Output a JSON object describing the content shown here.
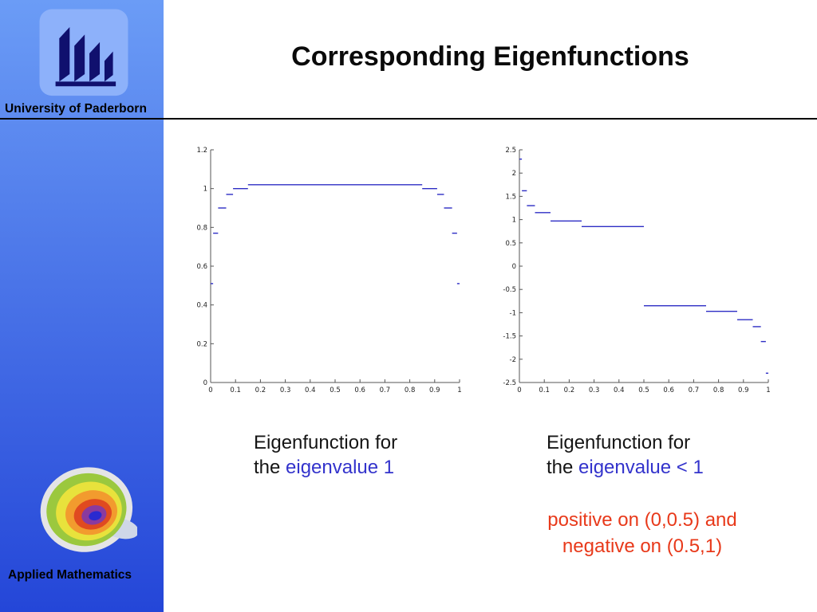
{
  "slide": {
    "title": "Corresponding Eigenfunctions"
  },
  "sidebar": {
    "university_label": "University of Paderborn",
    "department_label": "Applied Mathematics",
    "logo_icon": "university-logo-icon",
    "swirl_icon": "spiral-attractor-icon"
  },
  "captions": {
    "left": {
      "line1": "Eigenfunction for",
      "line2_prefix": "the ",
      "line2_highlight": "eigenvalue 1"
    },
    "right": {
      "line1": "Eigenfunction for",
      "line2_prefix": "the ",
      "line2_highlight": "eigenvalue < 1"
    },
    "note": {
      "line1": "positive on (0,0.5) and",
      "line2": "negative on (0.5,1)"
    }
  },
  "colors": {
    "highlight_blue": "#3333cc",
    "note_red": "#e8391a",
    "plot_line": "#2d2dc4",
    "axis_color": "#555555",
    "sidebar_top": "#6b9cf6",
    "sidebar_bottom": "#2446d8"
  },
  "chart_data": [
    {
      "type": "line",
      "style": "horizontal-step-segments",
      "title": "",
      "xlabel": "",
      "ylabel": "",
      "xlim": [
        0,
        1
      ],
      "ylim": [
        0,
        1.2
      ],
      "x_ticks": [
        0,
        0.1,
        0.2,
        0.3,
        0.4,
        0.5,
        0.6,
        0.7,
        0.8,
        0.9,
        1
      ],
      "x_tick_labels": [
        "0",
        "0.1",
        "0.2",
        "0.3",
        "0.4",
        "0.5",
        "0.6",
        "0.7",
        "0.8",
        "0.9",
        "1"
      ],
      "y_ticks": [
        0,
        0.2,
        0.4,
        0.6,
        0.8,
        1,
        1.2
      ],
      "y_tick_labels": [
        "0",
        "0.2",
        "0.4",
        "0.6",
        "0.8",
        "1",
        "1.2"
      ],
      "grid": false,
      "legend": false,
      "segments": [
        [
          0.0,
          0.01,
          0.51
        ],
        [
          0.01,
          0.03,
          0.77
        ],
        [
          0.03,
          0.0625,
          0.9
        ],
        [
          0.0625,
          0.09,
          0.97
        ],
        [
          0.09,
          0.15,
          1.0
        ],
        [
          0.15,
          0.85,
          1.02
        ],
        [
          0.85,
          0.91,
          1.0
        ],
        [
          0.91,
          0.9375,
          0.97
        ],
        [
          0.9375,
          0.97,
          0.9
        ],
        [
          0.97,
          0.99,
          0.77
        ],
        [
          0.99,
          1.0,
          0.51
        ]
      ]
    },
    {
      "type": "line",
      "style": "horizontal-step-segments",
      "title": "",
      "xlabel": "",
      "ylabel": "",
      "xlim": [
        0,
        1
      ],
      "ylim": [
        -2.5,
        2.5
      ],
      "x_ticks": [
        0,
        0.1,
        0.2,
        0.3,
        0.4,
        0.5,
        0.6,
        0.7,
        0.8,
        0.9,
        1
      ],
      "x_tick_labels": [
        "0",
        "0.1",
        "0.2",
        "0.3",
        "0.4",
        "0.5",
        "0.6",
        "0.7",
        "0.8",
        "0.9",
        "1"
      ],
      "y_ticks": [
        -2.5,
        -2,
        -1.5,
        -1,
        -0.5,
        0,
        0.5,
        1,
        1.5,
        2,
        2.5
      ],
      "y_tick_labels": [
        "-2.5",
        "-2",
        "-1.5",
        "-1",
        "-0.5",
        "0",
        "0.5",
        "1",
        "1.5",
        "2",
        "2.5"
      ],
      "grid": false,
      "legend": false,
      "segments": [
        [
          0.0,
          0.01,
          2.3
        ],
        [
          0.01,
          0.03,
          1.62
        ],
        [
          0.03,
          0.0625,
          1.3
        ],
        [
          0.0625,
          0.125,
          1.15
        ],
        [
          0.125,
          0.25,
          0.97
        ],
        [
          0.25,
          0.5,
          0.85
        ],
        [
          0.5,
          0.75,
          -0.85
        ],
        [
          0.75,
          0.875,
          -0.97
        ],
        [
          0.875,
          0.9375,
          -1.15
        ],
        [
          0.9375,
          0.97,
          -1.3
        ],
        [
          0.97,
          0.99,
          -1.62
        ],
        [
          0.99,
          1.0,
          -2.3
        ]
      ]
    }
  ]
}
